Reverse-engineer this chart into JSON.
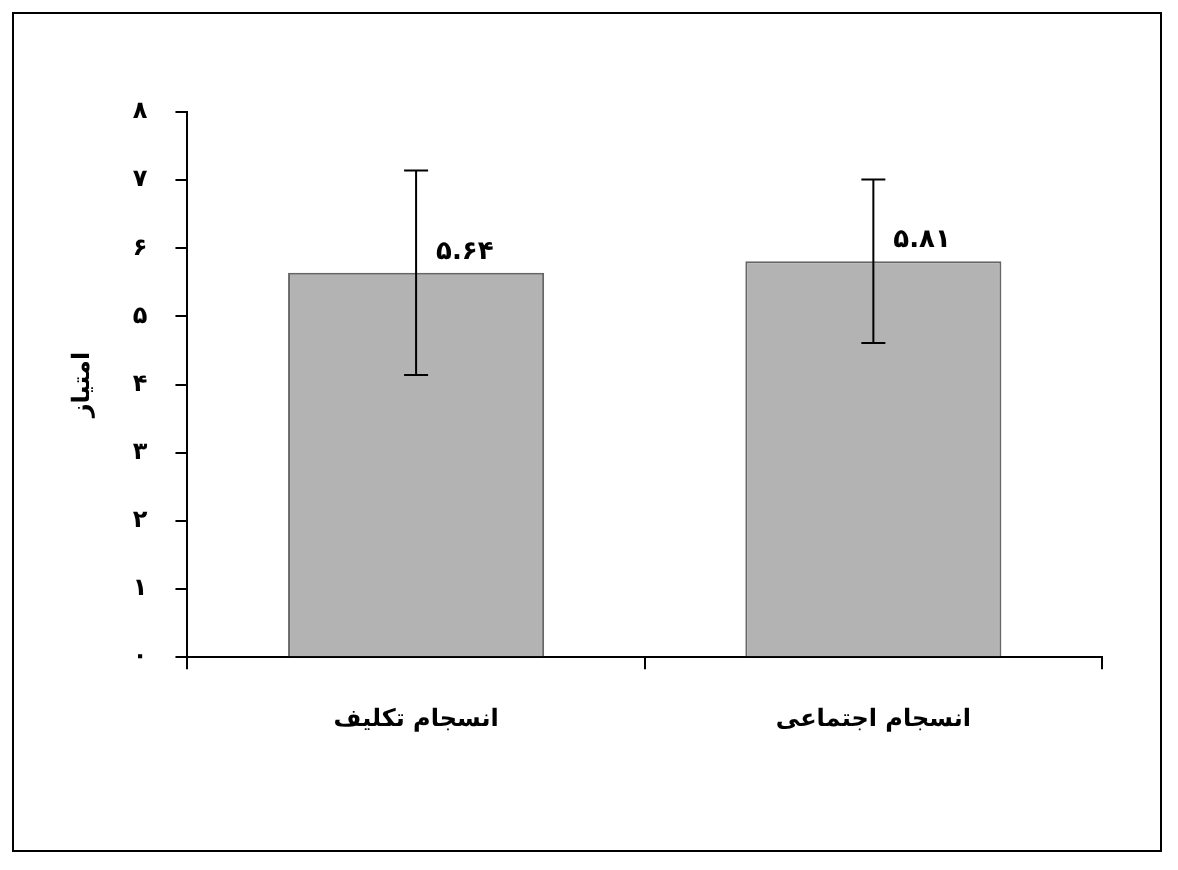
{
  "chart_data": {
    "type": "bar",
    "ylabel": "امتیاز",
    "categories": [
      "انسجام تکلیف",
      "انسجام اجتماعی"
    ],
    "values": [
      5.64,
      5.81
    ],
    "color": "#b3b3b3",
    "errors": [
      1.5,
      1.2
    ],
    "value_labels": [
      "۵.۶۴",
      "۵.۸۱"
    ],
    "ylim": [
      0,
      8
    ],
    "yticks": [
      {
        "value": 0,
        "label": "۰"
      },
      {
        "value": 1,
        "label": "۱"
      },
      {
        "value": 2,
        "label": "۲"
      },
      {
        "value": 3,
        "label": "۳"
      },
      {
        "value": 4,
        "label": "۴"
      },
      {
        "value": 5,
        "label": "۵"
      },
      {
        "value": 6,
        "label": "۶"
      },
      {
        "value": 7,
        "label": "۷"
      },
      {
        "value": 8,
        "label": "۸"
      }
    ],
    "grid": false,
    "legend": false
  }
}
